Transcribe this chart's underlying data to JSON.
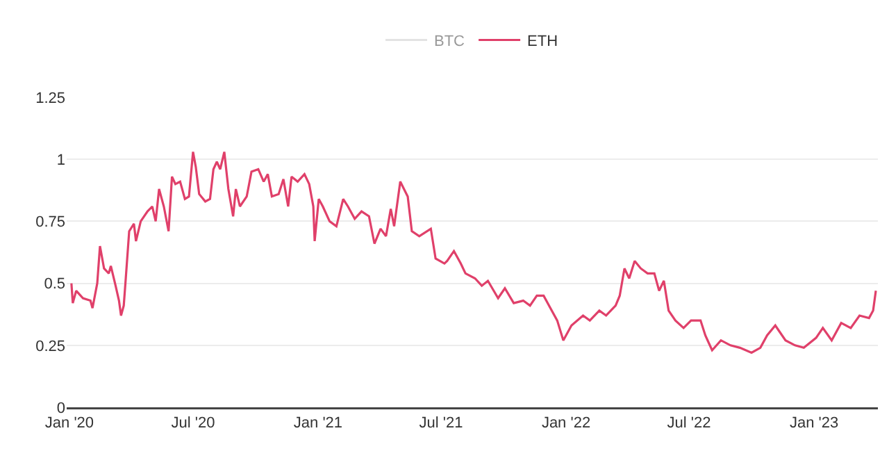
{
  "chart_data": {
    "type": "line",
    "x": [
      "2020-01-04",
      "2020-01-06",
      "2020-01-11",
      "2020-01-21",
      "2020-02-01",
      "2020-02-04",
      "2020-02-11",
      "2020-02-15",
      "2020-02-21",
      "2020-02-28",
      "2020-03-02",
      "2020-03-09",
      "2020-03-14",
      "2020-03-17",
      "2020-03-21",
      "2020-03-24",
      "2020-03-29",
      "2020-04-05",
      "2020-04-08",
      "2020-04-15",
      "2020-04-25",
      "2020-05-02",
      "2020-05-07",
      "2020-05-12",
      "2020-05-19",
      "2020-05-26",
      "2020-05-31",
      "2020-06-05",
      "2020-06-12",
      "2020-06-19",
      "2020-06-25",
      "2020-07-01",
      "2020-07-05",
      "2020-07-10",
      "2020-07-19",
      "2020-07-26",
      "2020-07-31",
      "2020-08-05",
      "2020-08-10",
      "2020-08-16",
      "2020-08-22",
      "2020-08-29",
      "2020-09-02",
      "2020-09-08",
      "2020-09-18",
      "2020-09-25",
      "2020-10-05",
      "2020-10-13",
      "2020-10-19",
      "2020-10-25",
      "2020-11-04",
      "2020-11-11",
      "2020-11-18",
      "2020-11-23",
      "2020-12-02",
      "2020-12-12",
      "2020-12-19",
      "2020-12-25",
      "2020-12-27",
      "2021-01-02",
      "2021-01-08",
      "2021-01-18",
      "2021-01-28",
      "2021-02-07",
      "2021-02-14",
      "2021-02-24",
      "2021-03-06",
      "2021-03-17",
      "2021-03-25",
      "2021-04-03",
      "2021-04-11",
      "2021-04-18",
      "2021-04-23",
      "2021-05-02",
      "2021-05-13",
      "2021-05-19",
      "2021-05-30",
      "2021-06-16",
      "2021-06-23",
      "2021-07-06",
      "2021-07-10",
      "2021-07-20",
      "2021-07-30",
      "2021-08-06",
      "2021-08-20",
      "2021-08-30",
      "2021-09-08",
      "2021-09-23",
      "2021-10-03",
      "2021-10-16",
      "2021-10-30",
      "2021-11-09",
      "2021-11-19",
      "2021-11-29",
      "2021-12-07",
      "2021-12-19",
      "2021-12-28",
      "2022-01-09",
      "2022-01-26",
      "2022-02-05",
      "2022-02-19",
      "2022-03-01",
      "2022-03-15",
      "2022-03-21",
      "2022-03-28",
      "2022-04-04",
      "2022-04-12",
      "2022-04-21",
      "2022-05-01",
      "2022-05-11",
      "2022-05-18",
      "2022-05-25",
      "2022-06-01",
      "2022-06-11",
      "2022-06-23",
      "2022-07-04",
      "2022-07-18",
      "2022-07-25",
      "2022-08-04",
      "2022-08-17",
      "2022-08-31",
      "2022-09-14",
      "2022-10-01",
      "2022-10-14",
      "2022-10-24",
      "2022-11-05",
      "2022-11-20",
      "2022-12-04",
      "2022-12-17",
      "2023-01-04",
      "2023-01-14",
      "2023-01-27",
      "2023-02-10",
      "2023-02-24",
      "2023-03-09",
      "2023-03-23",
      "2023-03-29",
      "2023-04-02"
    ],
    "series": [
      {
        "name": "BTC",
        "color": "#c8c8c8",
        "values": [
          null,
          null,
          null,
          null,
          null,
          null,
          null,
          null,
          null,
          null,
          null,
          null,
          null,
          null,
          null,
          null,
          null,
          null,
          null,
          null,
          null,
          null,
          null,
          null,
          null,
          null,
          null,
          null,
          null,
          null,
          null,
          null,
          null,
          null,
          null,
          null,
          null,
          null,
          null,
          null,
          null,
          null,
          null,
          null,
          null,
          null,
          null,
          null,
          null,
          null,
          null,
          null,
          null,
          null,
          null,
          null,
          null,
          null,
          null,
          null,
          null,
          null,
          null,
          null,
          null,
          null,
          null,
          null,
          null,
          null,
          null,
          null,
          null,
          null,
          null,
          null,
          null,
          null,
          null,
          null,
          null,
          null,
          null,
          null,
          null,
          null,
          null,
          null,
          null,
          null,
          null,
          null,
          null,
          null,
          null,
          null,
          null,
          null,
          null,
          null,
          null,
          null,
          null,
          null,
          null,
          null,
          null,
          null,
          null,
          null,
          null,
          null,
          null,
          null,
          null,
          null,
          null,
          null,
          null,
          null,
          null,
          null,
          null,
          null,
          null,
          null,
          null,
          null,
          null,
          null,
          null,
          null,
          null,
          null,
          null,
          null,
          null,
          null
        ]
      },
      {
        "name": "ETH",
        "color": "#e0406a",
        "values": [
          0.5,
          0.42,
          0.47,
          0.44,
          0.43,
          0.4,
          0.5,
          0.65,
          0.56,
          0.54,
          0.57,
          0.49,
          0.43,
          0.37,
          0.41,
          0.52,
          0.71,
          0.74,
          0.67,
          0.75,
          0.79,
          0.81,
          0.75,
          0.88,
          0.81,
          0.71,
          0.93,
          0.9,
          0.91,
          0.84,
          0.85,
          1.03,
          0.97,
          0.86,
          0.83,
          0.84,
          0.96,
          0.99,
          0.96,
          1.03,
          0.88,
          0.77,
          0.88,
          0.81,
          0.85,
          0.95,
          0.96,
          0.91,
          0.94,
          0.85,
          0.86,
          0.92,
          0.81,
          0.93,
          0.91,
          0.94,
          0.9,
          0.81,
          0.67,
          0.84,
          0.81,
          0.75,
          0.73,
          0.84,
          0.81,
          0.76,
          0.79,
          0.77,
          0.66,
          0.72,
          0.69,
          0.8,
          0.73,
          0.91,
          0.85,
          0.71,
          0.69,
          0.72,
          0.6,
          0.58,
          0.59,
          0.63,
          0.58,
          0.54,
          0.52,
          0.49,
          0.51,
          0.44,
          0.48,
          0.42,
          0.43,
          0.41,
          0.45,
          0.45,
          0.41,
          0.35,
          0.27,
          0.33,
          0.37,
          0.35,
          0.39,
          0.37,
          0.41,
          0.45,
          0.56,
          0.52,
          0.59,
          0.56,
          0.54,
          0.54,
          0.47,
          0.51,
          0.39,
          0.35,
          0.32,
          0.35,
          0.35,
          0.29,
          0.23,
          0.27,
          0.25,
          0.24,
          0.22,
          0.24,
          0.29,
          0.33,
          0.27,
          0.25,
          0.24,
          0.28,
          0.32,
          0.27,
          0.34,
          0.32,
          0.37,
          0.36,
          0.39,
          0.47
        ]
      }
    ],
    "xlim": [
      "2019-12-28",
      "2023-04-05"
    ],
    "xticks": [
      {
        "value": "2020-01-01",
        "label": "Jan '20"
      },
      {
        "value": "2020-07-01",
        "label": "Jul '20"
      },
      {
        "value": "2021-01-01",
        "label": "Jan '21"
      },
      {
        "value": "2021-07-01",
        "label": "Jul '21"
      },
      {
        "value": "2022-01-01",
        "label": "Jan '22"
      },
      {
        "value": "2022-07-01",
        "label": "Jul '22"
      },
      {
        "value": "2023-01-01",
        "label": "Jan '23"
      }
    ],
    "ylim": [
      0,
      1.25
    ],
    "yticks": [
      0,
      0.25,
      0.5,
      0.75,
      1,
      1.25
    ],
    "grid": "y",
    "legend": "top",
    "marker": "none",
    "line_style": "solid"
  }
}
